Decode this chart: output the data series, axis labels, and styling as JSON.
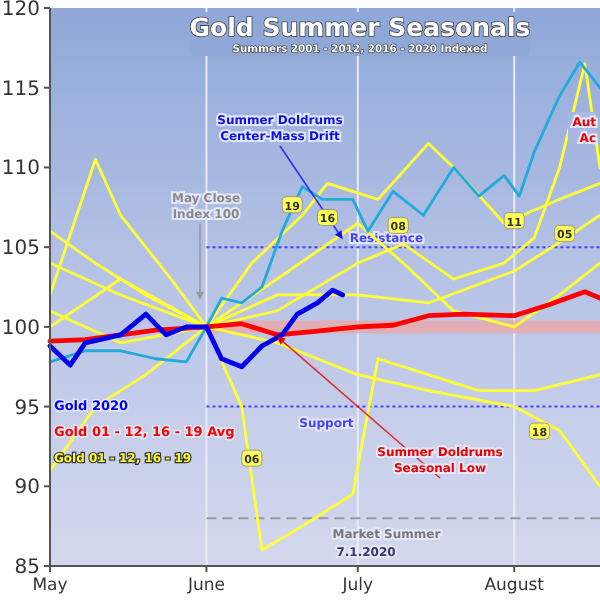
{
  "chart_data": {
    "type": "line",
    "title": "Gold Summer Seasonals",
    "subtitle": "Summers 2001 - 2012, 2016 - 2020 Indexed",
    "xlim": [
      "2020-05-01",
      "2020-08-18"
    ],
    "xticks": [
      {
        "value": "2020-05-01",
        "label": "May"
      },
      {
        "value": "2020-06-01",
        "label": "June"
      },
      {
        "value": "2020-07-01",
        "label": "July"
      },
      {
        "value": "2020-08-01",
        "label": "August"
      }
    ],
    "ylim": [
      85,
      120
    ],
    "yticks": [
      85,
      90,
      95,
      100,
      105,
      110,
      115,
      120
    ],
    "grid": "x",
    "legend": "bottom left",
    "marker": "none",
    "line_style": "solid",
    "series": [
      {
        "color": "#ffff33",
        "x": [
          "2020-05-01",
          "2020-05-10",
          "2020-05-20",
          "2020-06-01",
          "2020-06-10",
          "2020-06-20",
          "2020-06-25",
          "2020-07-05",
          "2020-07-15",
          "2020-07-20",
          "2020-07-30",
          "2020-08-10",
          "2020-08-18"
        ],
        "values": [
          106,
          104,
          102,
          100,
          104,
          107,
          109,
          108,
          111.5,
          110,
          106.5,
          108,
          109
        ]
      },
      {
        "color": "#ffff33",
        "x": [
          "2020-05-01",
          "2020-05-10",
          "2020-05-15",
          "2020-05-25",
          "2020-06-01",
          "2020-06-15",
          "2020-07-01",
          "2020-07-10",
          "2020-07-20",
          "2020-07-30",
          "2020-08-05",
          "2020-08-10",
          "2020-08-15",
          "2020-08-18"
        ],
        "values": [
          102,
          110.5,
          107,
          103,
          100,
          101,
          104,
          105.2,
          103,
          104,
          105.6,
          110,
          116.5,
          110
        ]
      },
      {
        "color": "#ffff33",
        "x": [
          "2020-05-01",
          "2020-05-15",
          "2020-06-01",
          "2020-06-15",
          "2020-07-01",
          "2020-07-10",
          "2020-07-20",
          "2020-08-01",
          "2020-08-10",
          "2020-08-18"
        ],
        "values": [
          104,
          102,
          100,
          103,
          106.5,
          104,
          101,
          100,
          102,
          104
        ]
      },
      {
        "color": "#ffff33",
        "x": [
          "2020-05-01",
          "2020-05-15",
          "2020-06-01",
          "2020-06-15",
          "2020-07-01",
          "2020-07-15",
          "2020-08-01",
          "2020-08-10",
          "2020-08-18"
        ],
        "values": [
          100,
          103,
          100,
          102,
          102,
          101.5,
          103.5,
          105.3,
          107
        ]
      },
      {
        "color": "#ffff33",
        "x": [
          "2020-05-01",
          "2020-05-15",
          "2020-06-01",
          "2020-06-15",
          "2020-07-01",
          "2020-07-15",
          "2020-08-01",
          "2020-08-10",
          "2020-08-18"
        ],
        "values": [
          101,
          99,
          100,
          99,
          97,
          96,
          95,
          93.5,
          90
        ]
      },
      {
        "color": "#ffff33",
        "x": [
          "2020-05-01",
          "2020-05-10",
          "2020-05-20",
          "2020-06-01",
          "2020-06-08",
          "2020-06-12",
          "2020-06-20",
          "2020-06-30",
          "2020-07-05",
          "2020-07-15",
          "2020-07-25",
          "2020-08-05",
          "2020-08-18"
        ],
        "values": [
          91,
          95,
          97,
          100,
          95,
          86,
          87.5,
          89.5,
          98,
          97,
          96,
          96,
          97
        ]
      },
      {
        "color": "#22aadd",
        "x": [
          "2020-05-01",
          "2020-05-08",
          "2020-05-15",
          "2020-05-22",
          "2020-05-28",
          "2020-06-01",
          "2020-06-04",
          "2020-06-08",
          "2020-06-12",
          "2020-06-16",
          "2020-06-20",
          "2020-06-24",
          "2020-06-30",
          "2020-07-03",
          "2020-07-08",
          "2020-07-14",
          "2020-07-20",
          "2020-07-25",
          "2020-07-30",
          "2020-08-02",
          "2020-08-05",
          "2020-08-10",
          "2020-08-14",
          "2020-08-18"
        ],
        "values": [
          97.8,
          98.5,
          98.5,
          98,
          97.8,
          100,
          101.8,
          101.5,
          102.5,
          106,
          108.8,
          108,
          108,
          106,
          108.5,
          107,
          110,
          108.2,
          109.5,
          108.2,
          111,
          114.5,
          116.6,
          115
        ]
      },
      {
        "name": "Gold 01 - 12, 16 - 19 Avg",
        "color": "#ff0000",
        "x": [
          "2020-05-01",
          "2020-05-08",
          "2020-05-15",
          "2020-05-22",
          "2020-06-01",
          "2020-06-08",
          "2020-06-15",
          "2020-06-22",
          "2020-07-01",
          "2020-07-08",
          "2020-07-15",
          "2020-07-22",
          "2020-08-01",
          "2020-08-08",
          "2020-08-15",
          "2020-08-18"
        ],
        "values": [
          99.1,
          99.2,
          99.5,
          99.8,
          100,
          100.2,
          99.5,
          99.7,
          100,
          100.1,
          100.7,
          100.8,
          100.7,
          101.4,
          102.2,
          101.8
        ]
      },
      {
        "name": "Gold 2020",
        "color": "#0000ee",
        "x": [
          "2020-05-01",
          "2020-05-05",
          "2020-05-08",
          "2020-05-15",
          "2020-05-20",
          "2020-05-24",
          "2020-05-28",
          "2020-06-01",
          "2020-06-04",
          "2020-06-08",
          "2020-06-12",
          "2020-06-16",
          "2020-06-19",
          "2020-06-23",
          "2020-06-26",
          "2020-06-28"
        ],
        "values": [
          98.8,
          97.6,
          99,
          99.5,
          100.8,
          99.5,
          100,
          100,
          98,
          97.5,
          98.8,
          99.5,
          100.8,
          101.5,
          102.3,
          102
        ]
      }
    ],
    "ref_lines": [
      {
        "axis": "y",
        "value": 105,
        "label": "Resistance",
        "color": "#4444ff",
        "line_style": "dotted"
      },
      {
        "axis": "y",
        "value": 95,
        "label": "Support",
        "color": "#4444ff",
        "line_style": "dotted"
      },
      {
        "axis": "y",
        "value": 88,
        "label": "Market Summer",
        "color": "#999999",
        "line_style": "dashed"
      }
    ],
    "bands": [
      {
        "axis": "y",
        "from": 99.6,
        "to": 100.4,
        "color": "#e8a8a8"
      }
    ],
    "annotations": [
      {
        "text": "Summer Doldrums Center-Mass Drift",
        "x": "2020-06-28",
        "y": 105.5
      },
      "May Close Index 100",
      {
        "text": "Summer Doldrums Seasonal Low",
        "x": "2020-06-15",
        "y": 99.4
      },
      "Aut Ac",
      "Gold 01 - 12, 16 - 19",
      "7.1.2020",
      {
        "text": "19",
        "x": "2020-06-18",
        "y": 107.6
      },
      {
        "text": "16",
        "x": "2020-06-25",
        "y": 106.8
      },
      {
        "text": "08",
        "x": "2020-07-09",
        "y": 106.3
      },
      {
        "text": "11",
        "x": "2020-08-01",
        "y": 106.6
      },
      {
        "text": "05",
        "x": "2020-08-11",
        "y": 105.8
      },
      {
        "text": "18",
        "x": "2020-08-06",
        "y": 93.4
      },
      {
        "text": "06",
        "x": "2020-06-10",
        "y": 91.7
      }
    ]
  }
}
